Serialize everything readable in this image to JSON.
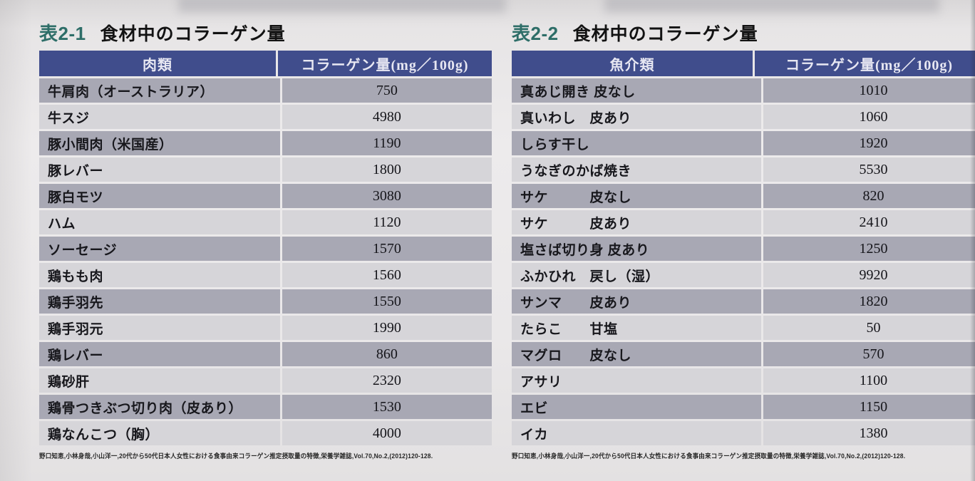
{
  "colors": {
    "header_bg": "#404d8c",
    "row_dark": "#a8a8b4",
    "row_light": "#d6d5d9",
    "caption_accent": "#2e6e68"
  },
  "tables": [
    {
      "caption_label": "表2-1",
      "caption_title": "食材中のコラーゲン量",
      "headers": {
        "category": "肉類",
        "amount": "コラーゲン量(mg／100g)"
      },
      "rows": [
        {
          "name": "牛肩肉（オーストラリア）",
          "value": "750"
        },
        {
          "name": "牛スジ",
          "value": "4980"
        },
        {
          "name": "豚小間肉（米国産）",
          "value": "1190"
        },
        {
          "name": "豚レバー",
          "value": "1800"
        },
        {
          "name": "豚白モツ",
          "value": "3080"
        },
        {
          "name": "ハム",
          "value": "1120"
        },
        {
          "name": "ソーセージ",
          "value": "1570"
        },
        {
          "name": "鶏もも肉",
          "value": "1560"
        },
        {
          "name": "鶏手羽先",
          "value": "1550"
        },
        {
          "name": "鶏手羽元",
          "value": "1990"
        },
        {
          "name": "鶏レバー",
          "value": "860"
        },
        {
          "name": "鶏砂肝",
          "value": "2320"
        },
        {
          "name": "鶏骨つきぶつ切り肉（皮あり）",
          "value": "1530"
        },
        {
          "name": "鶏なんこつ（胸）",
          "value": "4000"
        }
      ],
      "footnote": "野口知恵,小林身哉,小山洋一,20代から50代日本人女性における食事由来コラーゲン推定摂取量の特徴,栄養学雑誌,Vol.70,No.2,(2012)120-128."
    },
    {
      "caption_label": "表2-2",
      "caption_title": "食材中のコラーゲン量",
      "headers": {
        "category": "魚介類",
        "amount": "コラーゲン量(mg／100g)"
      },
      "rows": [
        {
          "name": "真あじ開き 皮なし",
          "value": "1010"
        },
        {
          "name": "真いわし　皮あり",
          "value": "1060"
        },
        {
          "name": "しらす干し",
          "value": "1920"
        },
        {
          "name": "うなぎのかば焼き",
          "value": "5530"
        },
        {
          "name": "サケ　　　皮なし",
          "value": "820"
        },
        {
          "name": "サケ　　　皮あり",
          "value": "2410"
        },
        {
          "name": "塩さば切り身 皮あり",
          "value": "1250"
        },
        {
          "name": "ふかひれ　戻し（湿）",
          "value": "9920"
        },
        {
          "name": "サンマ　　皮あり",
          "value": "1820"
        },
        {
          "name": "たらこ　　甘塩",
          "value": "50"
        },
        {
          "name": "マグロ　　皮なし",
          "value": "570"
        },
        {
          "name": "アサリ",
          "value": "1100"
        },
        {
          "name": "エビ",
          "value": "1150"
        },
        {
          "name": "イカ",
          "value": "1380"
        }
      ],
      "footnote": "野口知恵,小林身哉,小山洋一,20代から50代日本人女性における食事由来コラーゲン推定摂取量の特徴,栄養学雑誌,Vol.70,No.2,(2012)120-128."
    }
  ]
}
